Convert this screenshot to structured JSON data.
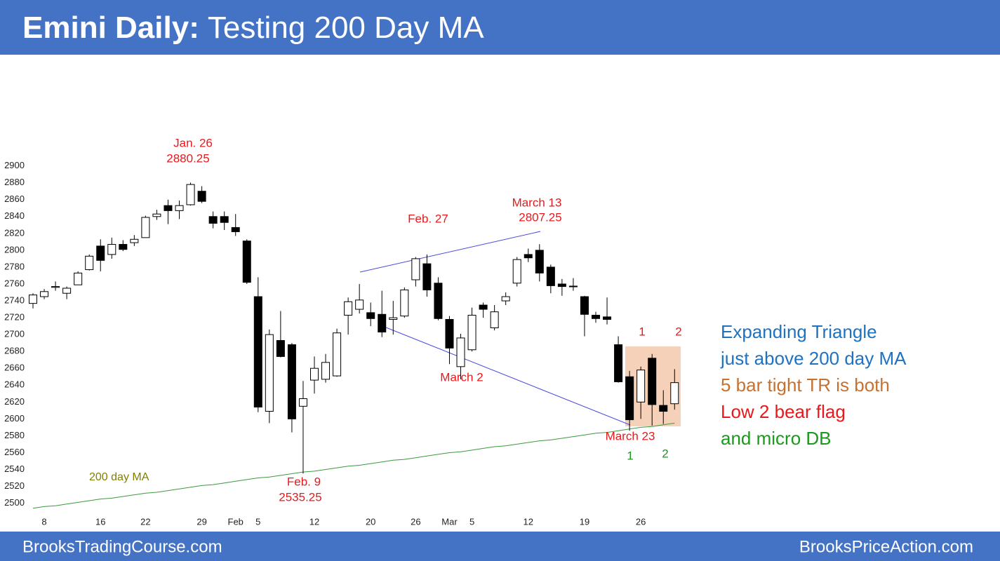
{
  "header": {
    "title_bold": "Emini Daily:",
    "title_rest": "Testing 200 Day MA"
  },
  "footer": {
    "left": "BrooksTradingCourse.com",
    "right": "BrooksPriceAction.com"
  },
  "chart_data": {
    "type": "candlestick",
    "categories": [
      null,
      "8",
      null,
      null,
      null,
      null,
      "16",
      null,
      null,
      null,
      "22",
      null,
      null,
      null,
      null,
      "29",
      null,
      null,
      "Feb",
      null,
      "5",
      null,
      null,
      null,
      null,
      "12",
      null,
      null,
      null,
      null,
      "20",
      null,
      null,
      null,
      "26",
      null,
      null,
      "Mar",
      null,
      "5",
      null,
      null,
      null,
      null,
      "12",
      null,
      null,
      null,
      null,
      "19",
      null,
      null,
      null,
      null,
      "26",
      null,
      null,
      null
    ],
    "open": [
      2737,
      2745,
      2756,
      2749,
      2759,
      2777,
      2805,
      2795,
      2807,
      2809,
      2815,
      2840,
      2853,
      2847,
      2854,
      2870,
      2840,
      2840,
      2827,
      2811,
      2745,
      2609,
      2693,
      2688,
      2615,
      2646,
      2647,
      2651,
      2723,
      2730,
      2726,
      2724,
      2718,
      2722,
      2765,
      2784,
      2761,
      2718,
      2662,
      2682,
      2735,
      2708,
      2740,
      2761,
      2795,
      2800,
      2780,
      2760,
      2757,
      2745,
      2723,
      2721,
      2688,
      2650,
      2620,
      2672,
      2616,
      2618
    ],
    "high": [
      2749,
      2754,
      2763,
      2757,
      2775,
      2795,
      2813,
      2815,
      2812,
      2818,
      2841,
      2848,
      2860,
      2859,
      2880.25,
      2876,
      2846,
      2846,
      2843,
      2813,
      2768,
      2706,
      2728,
      2690,
      2645,
      2674,
      2677,
      2707,
      2744,
      2760,
      2738,
      2752,
      2740,
      2756,
      2792,
      2795,
      2768,
      2722,
      2701,
      2732,
      2738,
      2735,
      2750,
      2792,
      2802,
      2807.25,
      2783,
      2766,
      2767,
      2746,
      2727,
      2744,
      2698,
      2657,
      2662,
      2677,
      2634,
      2659
    ],
    "low": [
      2731,
      2742,
      2752,
      2742,
      2759,
      2776,
      2775,
      2790,
      2799,
      2805,
      2815,
      2836,
      2831,
      2837,
      2853,
      2856,
      2826,
      2824,
      2817,
      2760,
      2608,
      2595,
      2673,
      2584,
      2535.25,
      2630,
      2643,
      2650,
      2700,
      2725,
      2710,
      2697,
      2700,
      2720,
      2757,
      2745,
      2717,
      2665,
      2647,
      2680,
      2720,
      2705,
      2735,
      2757,
      2786,
      2763,
      2749,
      2746,
      2752,
      2698,
      2714,
      2712,
      2643,
      2586,
      2600,
      2592,
      2594,
      2611
    ],
    "close": [
      2747,
      2751,
      2757,
      2755,
      2773,
      2793,
      2788,
      2807,
      2801,
      2813,
      2839,
      2843,
      2847,
      2853,
      2878,
      2858,
      2832,
      2833,
      2822,
      2762,
      2614,
      2700,
      2674,
      2600,
      2624,
      2660,
      2667,
      2702,
      2739,
      2741,
      2719,
      2703,
      2720,
      2753,
      2790,
      2753,
      2719,
      2684,
      2696,
      2723,
      2730,
      2727,
      2745,
      2789,
      2791,
      2773,
      2758,
      2757,
      2757.5,
      2724,
      2719,
      2718,
      2644,
      2599,
      2658,
      2617,
      2609,
      2643
    ],
    "ma": {
      "name": "200 day MA",
      "color": "#3c9a3c",
      "label_color": "#808000",
      "values": [
        2494,
        2496,
        2497,
        2499,
        2501,
        2503,
        2505,
        2506,
        2508,
        2510,
        2512,
        2513,
        2515,
        2517,
        2519,
        2521,
        2522,
        2524,
        2526,
        2528,
        2530,
        2531,
        2533,
        2535,
        2537,
        2538,
        2540,
        2542,
        2544,
        2545,
        2547,
        2549,
        2551,
        2552,
        2554,
        2556,
        2558,
        2560,
        2561,
        2563,
        2565,
        2567,
        2568,
        2570,
        2572,
        2574,
        2575,
        2577,
        2579,
        2581,
        2583,
        2584,
        2586,
        2588,
        2590,
        2591,
        2593,
        2595
      ]
    },
    "ylim": [
      2490,
      2910
    ],
    "yticks": [
      2500,
      2520,
      2540,
      2560,
      2580,
      2600,
      2620,
      2640,
      2660,
      2680,
      2700,
      2720,
      2740,
      2760,
      2780,
      2800,
      2820,
      2840,
      2860,
      2880,
      2900
    ],
    "up_color": "#ffffff",
    "down_color": "#000000",
    "annotations": [
      {
        "text": "Jan. 26",
        "color": "#e8191c"
      },
      {
        "text": "2880.25",
        "color": "#e8191c"
      },
      {
        "text": "Feb. 27",
        "color": "#e8191c"
      },
      {
        "text": "March 13",
        "color": "#e8191c"
      },
      {
        "text": "2807.25",
        "color": "#e8191c"
      },
      {
        "text": "March 2",
        "color": "#e8191c"
      },
      {
        "text": "Feb. 9",
        "color": "#e8191c"
      },
      {
        "text": "2535.25",
        "color": "#e8191c"
      },
      {
        "text": "March 23",
        "color": "#e8191c"
      },
      {
        "text": "1",
        "color": "#e8191c"
      },
      {
        "text": "2",
        "color": "#e8191c"
      },
      {
        "text": "1",
        "color": "#1a9a1a"
      },
      {
        "text": "2",
        "color": "#1a9a1a"
      }
    ],
    "notes": [
      {
        "text": "Expanding Triangle",
        "color": "#1f72c0"
      },
      {
        "text": "just above 200 day MA",
        "color": "#1f72c0"
      },
      {
        "text": "5 bar tight TR is both",
        "color": "#c8712e"
      },
      {
        "text": "Low 2 bear flag",
        "color": "#e8191c"
      },
      {
        "text": "and micro DB",
        "color": "#1a9a1a"
      }
    ]
  }
}
